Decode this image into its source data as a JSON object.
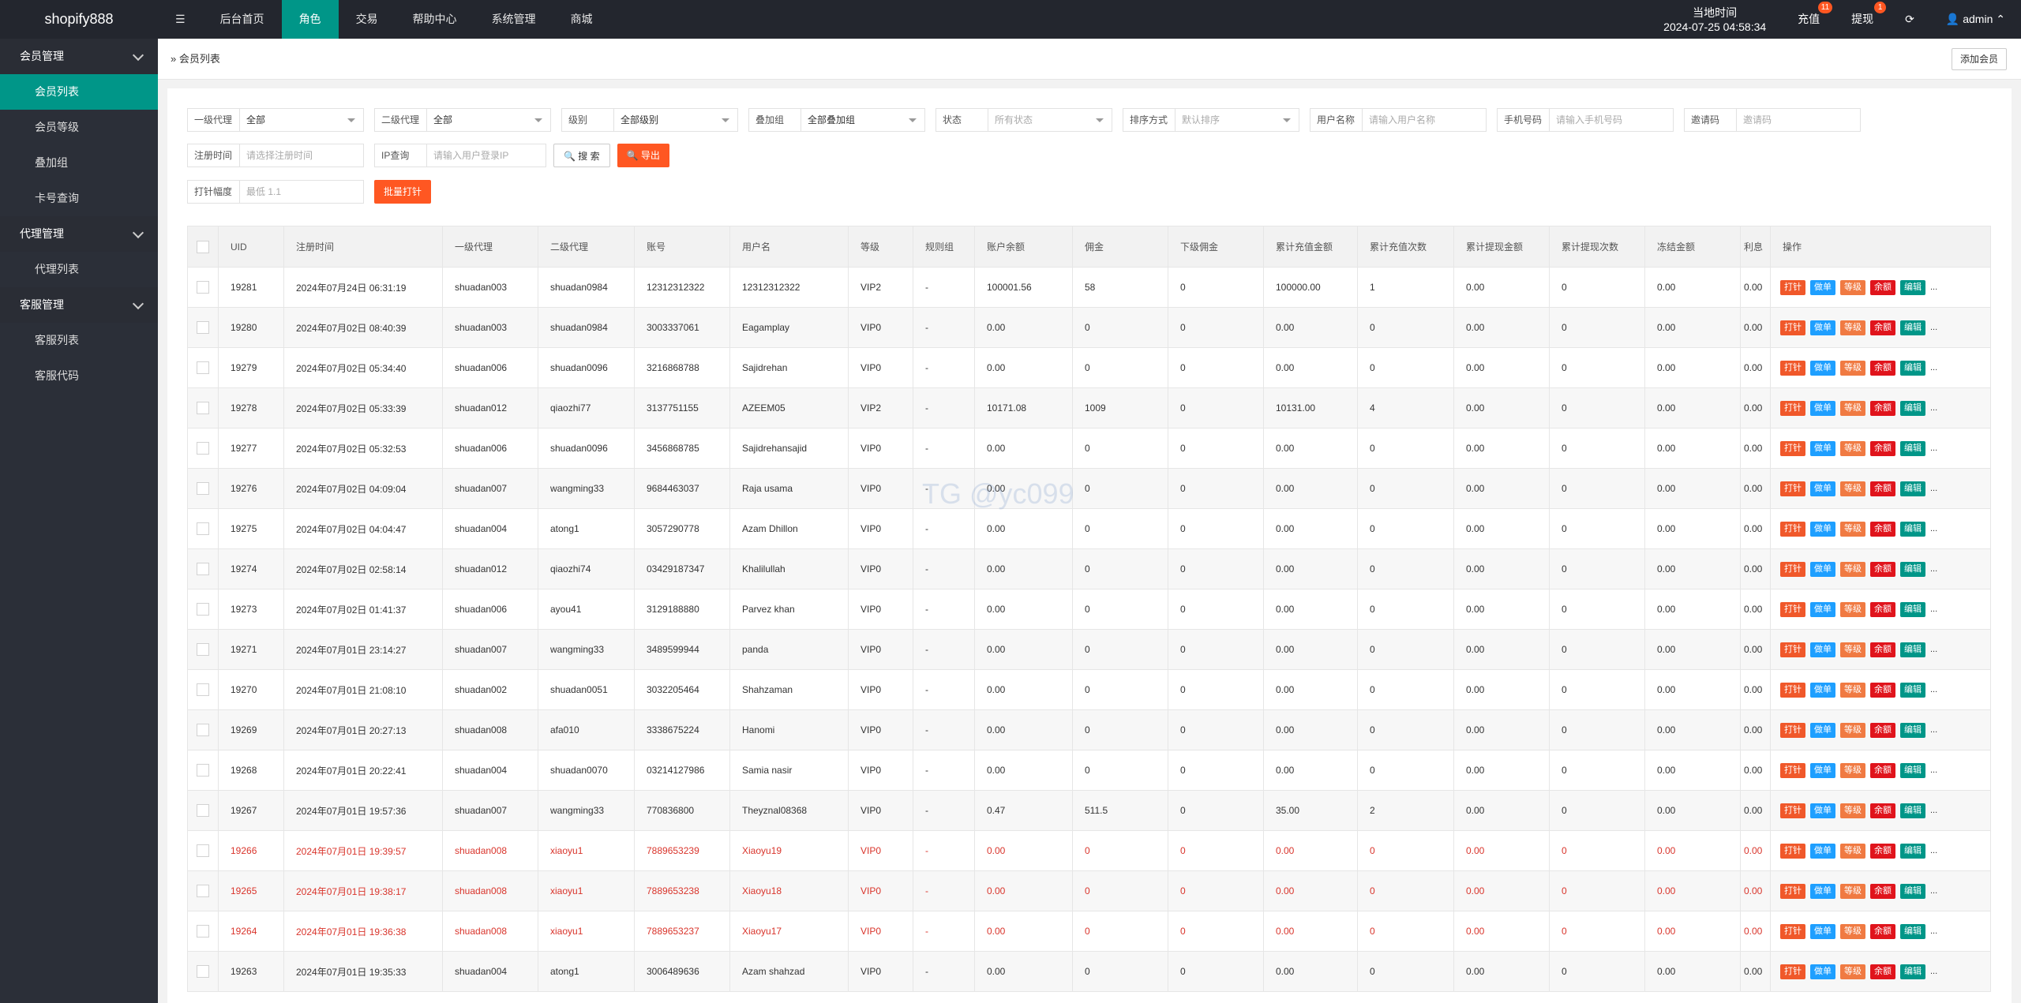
{
  "header": {
    "logo": "shopify888",
    "nav": [
      "后台首页",
      "角色",
      "交易",
      "帮助中心",
      "系统管理",
      "商城"
    ],
    "time_label": "当地时间",
    "time": "2024-07-25 04:58:34",
    "recharge": "充值",
    "recharge_badge": "11",
    "withdraw": "提现",
    "withdraw_badge": "1",
    "user": "admin"
  },
  "sidebar": [
    {
      "title": "会员管理",
      "items": [
        "会员列表",
        "会员等级",
        "叠加组",
        "卡号查询"
      ]
    },
    {
      "title": "代理管理",
      "items": [
        "代理列表"
      ]
    },
    {
      "title": "客服管理",
      "items": [
        "客服列表",
        "客服代码"
      ]
    }
  ],
  "breadcrumb": "会员列表",
  "add_button": "添加会员",
  "filters": {
    "row1": [
      {
        "label": "一级代理",
        "value": "全部"
      },
      {
        "label": "二级代理",
        "value": "全部"
      },
      {
        "label": "级别",
        "value": "全部级别"
      },
      {
        "label": "叠加组",
        "value": "全部叠加组"
      },
      {
        "label": "状态",
        "placeholder": "所有状态"
      },
      {
        "label": "排序方式",
        "placeholder": "默认排序"
      },
      {
        "label": "用户名称",
        "placeholder": "请输入用户名称"
      },
      {
        "label": "手机号码",
        "placeholder": "请输入手机号码"
      },
      {
        "label": "邀请码",
        "placeholder": "邀请码"
      }
    ],
    "row2": [
      {
        "label": "注册时间",
        "placeholder": "请选择注册时间"
      },
      {
        "label": "IP查询",
        "placeholder": "请输入用户登录IP"
      }
    ],
    "search": "搜 索",
    "export": "导出",
    "row3": [
      {
        "label": "打针幅度",
        "placeholder": "最低 1.1"
      }
    ],
    "batch": "批量打针"
  },
  "watermark": "TG @yc099",
  "table": {
    "columns": [
      "UID",
      "注册时间",
      "一级代理",
      "二级代理",
      "账号",
      "用户名",
      "等级",
      "规则组",
      "账户余额",
      "佣金",
      "下级佣金",
      "累计充值金额",
      "累计充值次数",
      "累计提现金额",
      "累计提现次数",
      "冻结金额",
      "利息",
      "操作"
    ],
    "actions": [
      "打针",
      "做单",
      "等级",
      "余额",
      "编辑",
      "..."
    ],
    "rows": [
      {
        "cells": [
          "19281",
          "2024年07月24日 06:31:19",
          "shuadan003",
          "shuadan0984",
          "12312312322",
          "12312312322",
          "VIP2",
          "-",
          "100001.56",
          "58",
          "0",
          "100000.00",
          "1",
          "0.00",
          "0",
          "0.00",
          "0.00"
        ]
      },
      {
        "cells": [
          "19280",
          "2024年07月02日 08:40:39",
          "shuadan003",
          "shuadan0984",
          "3003337061",
          "Eagamplay",
          "VIP0",
          "-",
          "0.00",
          "0",
          "0",
          "0.00",
          "0",
          "0.00",
          "0",
          "0.00",
          "0.00"
        ]
      },
      {
        "cells": [
          "19279",
          "2024年07月02日 05:34:40",
          "shuadan006",
          "shuadan0096",
          "3216868788",
          "Sajidrehan",
          "VIP0",
          "-",
          "0.00",
          "0",
          "0",
          "0.00",
          "0",
          "0.00",
          "0",
          "0.00",
          "0.00"
        ]
      },
      {
        "cells": [
          "19278",
          "2024年07月02日 05:33:39",
          "shuadan012",
          "qiaozhi77",
          "3137751155",
          "AZEEM05",
          "VIP2",
          "-",
          "10171.08",
          "1009",
          "0",
          "10131.00",
          "4",
          "0.00",
          "0",
          "0.00",
          "0.00"
        ]
      },
      {
        "cells": [
          "19277",
          "2024年07月02日 05:32:53",
          "shuadan006",
          "shuadan0096",
          "3456868785",
          "Sajidrehansajid",
          "VIP0",
          "-",
          "0.00",
          "0",
          "0",
          "0.00",
          "0",
          "0.00",
          "0",
          "0.00",
          "0.00"
        ]
      },
      {
        "cells": [
          "19276",
          "2024年07月02日 04:09:04",
          "shuadan007",
          "wangming33",
          "9684463037",
          "Raja usama",
          "VIP0",
          "-",
          "0.00",
          "0",
          "0",
          "0.00",
          "0",
          "0.00",
          "0",
          "0.00",
          "0.00"
        ]
      },
      {
        "cells": [
          "19275",
          "2024年07月02日 04:04:47",
          "shuadan004",
          "atong1",
          "3057290778",
          "Azam Dhillon",
          "VIP0",
          "-",
          "0.00",
          "0",
          "0",
          "0.00",
          "0",
          "0.00",
          "0",
          "0.00",
          "0.00"
        ]
      },
      {
        "cells": [
          "19274",
          "2024年07月02日 02:58:14",
          "shuadan012",
          "qiaozhi74",
          "03429187347",
          "Khalilullah",
          "VIP0",
          "-",
          "0.00",
          "0",
          "0",
          "0.00",
          "0",
          "0.00",
          "0",
          "0.00",
          "0.00"
        ]
      },
      {
        "cells": [
          "19273",
          "2024年07月02日 01:41:37",
          "shuadan006",
          "ayou41",
          "3129188880",
          "Parvez khan",
          "VIP0",
          "-",
          "0.00",
          "0",
          "0",
          "0.00",
          "0",
          "0.00",
          "0",
          "0.00",
          "0.00"
        ]
      },
      {
        "cells": [
          "19271",
          "2024年07月01日 23:14:27",
          "shuadan007",
          "wangming33",
          "3489599944",
          "panda",
          "VIP0",
          "-",
          "0.00",
          "0",
          "0",
          "0.00",
          "0",
          "0.00",
          "0",
          "0.00",
          "0.00"
        ]
      },
      {
        "cells": [
          "19270",
          "2024年07月01日 21:08:10",
          "shuadan002",
          "shuadan0051",
          "3032205464",
          "Shahzaman",
          "VIP0",
          "-",
          "0.00",
          "0",
          "0",
          "0.00",
          "0",
          "0.00",
          "0",
          "0.00",
          "0.00"
        ]
      },
      {
        "cells": [
          "19269",
          "2024年07月01日 20:27:13",
          "shuadan008",
          "afa010",
          "3338675224",
          "Hanomi",
          "VIP0",
          "-",
          "0.00",
          "0",
          "0",
          "0.00",
          "0",
          "0.00",
          "0",
          "0.00",
          "0.00"
        ]
      },
      {
        "cells": [
          "19268",
          "2024年07月01日 20:22:41",
          "shuadan004",
          "shuadan0070",
          "03214127986",
          "Samia nasir",
          "VIP0",
          "-",
          "0.00",
          "0",
          "0",
          "0.00",
          "0",
          "0.00",
          "0",
          "0.00",
          "0.00"
        ]
      },
      {
        "cells": [
          "19267",
          "2024年07月01日 19:57:36",
          "shuadan007",
          "wangming33",
          "770836800",
          "Theyznal08368",
          "VIP0",
          "-",
          "0.47",
          "511.5",
          "0",
          "35.00",
          "2",
          "0.00",
          "0",
          "0.00",
          "0.00"
        ]
      },
      {
        "cells": [
          "19266",
          "2024年07月01日 19:39:57",
          "shuadan008",
          "xiaoyu1",
          "7889653239",
          "Xiaoyu19",
          "VIP0",
          "-",
          "0.00",
          "0",
          "0",
          "0.00",
          "0",
          "0.00",
          "0",
          "0.00",
          "0.00"
        ],
        "color": "#d9342b"
      },
      {
        "cells": [
          "19265",
          "2024年07月01日 19:38:17",
          "shuadan008",
          "xiaoyu1",
          "7889653238",
          "Xiaoyu18",
          "VIP0",
          "-",
          "0.00",
          "0",
          "0",
          "0.00",
          "0",
          "0.00",
          "0",
          "0.00",
          "0.00"
        ],
        "color": "#d9342b"
      },
      {
        "cells": [
          "19264",
          "2024年07月01日 19:36:38",
          "shuadan008",
          "xiaoyu1",
          "7889653237",
          "Xiaoyu17",
          "VIP0",
          "-",
          "0.00",
          "0",
          "0",
          "0.00",
          "0",
          "0.00",
          "0",
          "0.00",
          "0.00"
        ],
        "color": "#d9342b"
      },
      {
        "cells": [
          "19263",
          "2024年07月01日 19:35:33",
          "shuadan004",
          "atong1",
          "3006489636",
          "Azam shahzad",
          "VIP0",
          "-",
          "0.00",
          "0",
          "0",
          "0.00",
          "0",
          "0.00",
          "0",
          "0.00",
          "0.00"
        ]
      }
    ]
  }
}
